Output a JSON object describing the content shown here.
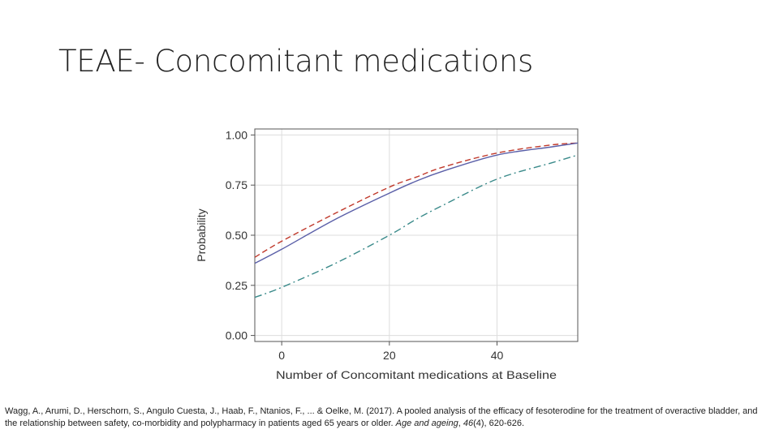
{
  "slide": {
    "title": "TEAE- Concomitant medications"
  },
  "chart_data": {
    "type": "line",
    "title": "",
    "xlabel": "Number of Concomitant medications at Baseline",
    "ylabel": "Probability",
    "xlim": [
      -5,
      55
    ],
    "ylim": [
      -0.03,
      1.03
    ],
    "x_ticks": [
      0,
      20,
      40
    ],
    "y_ticks": [
      0.0,
      0.25,
      0.5,
      0.75,
      1.0
    ],
    "y_tick_labels": [
      "0.00",
      "0.25",
      "0.50",
      "0.75",
      "1.00"
    ],
    "grid": true,
    "colors": {
      "red_dashed": "#c0392b",
      "blue_solid": "#5a5fa8",
      "teal_dashdot": "#3a8a8a"
    },
    "series": [
      {
        "name": "red-dashed",
        "style": "dashed",
        "color": "#c0392b",
        "x": [
          -5,
          0,
          10,
          20,
          25,
          30,
          40,
          50,
          55
        ],
        "y": [
          0.39,
          0.47,
          0.61,
          0.74,
          0.79,
          0.84,
          0.91,
          0.95,
          0.96
        ]
      },
      {
        "name": "blue-solid",
        "style": "solid",
        "color": "#5a5fa8",
        "x": [
          -5,
          0,
          10,
          20,
          25,
          30,
          40,
          50,
          55
        ],
        "y": [
          0.36,
          0.43,
          0.58,
          0.71,
          0.77,
          0.82,
          0.9,
          0.94,
          0.96
        ]
      },
      {
        "name": "teal-dashdot",
        "style": "dashdot",
        "color": "#3a8a8a",
        "x": [
          -5,
          0,
          10,
          20,
          25,
          30,
          40,
          50,
          55
        ],
        "y": [
          0.19,
          0.24,
          0.36,
          0.5,
          0.58,
          0.65,
          0.78,
          0.86,
          0.9
        ]
      }
    ]
  },
  "citation": {
    "text_before": "Wagg, A., Arumi, D., Herschorn, S., Angulo Cuesta, J., Haab, F., Ntanios, F., ... & Oelke, M. (2017). A pooled analysis of the efficacy of fesoterodine for the treatment of overactive bladder, and the relationship between safety, co-morbidity and polypharmacy in patients aged 65 years or older.",
    "journal": "Age and ageing",
    "volume": "46",
    "issue_pages": "(4), 620-626."
  }
}
